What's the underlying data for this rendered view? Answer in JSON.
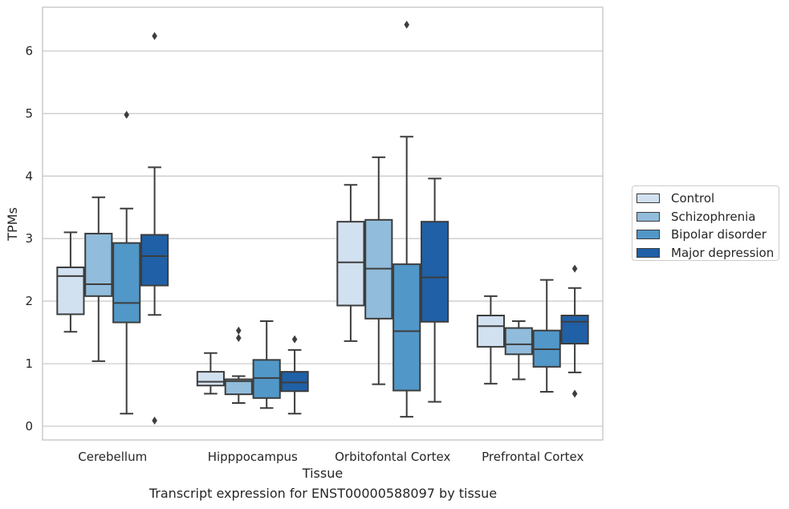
{
  "caption": "Transcript expression for ENST00000588097 by tissue",
  "chart_data": {
    "type": "box",
    "xlabel": "Tissue",
    "ylabel": "TPMs",
    "ylim": [
      -0.22,
      6.7
    ],
    "yticks": [
      0,
      1,
      2,
      3,
      4,
      5,
      6
    ],
    "grid": true,
    "legend_position": "right",
    "categories": [
      "Cerebellum",
      "Hipppocampus",
      "Orbitofontal Cortex",
      "Prefrontal Cortex"
    ],
    "series": [
      {
        "name": "Control",
        "color": "#d1e1f0",
        "boxes": [
          {
            "whislo": 1.51,
            "q1": 1.79,
            "med": 2.4,
            "q3": 2.54,
            "whishi": 3.1,
            "fliers": []
          },
          {
            "whislo": 0.52,
            "q1": 0.65,
            "med": 0.71,
            "q3": 0.87,
            "whishi": 1.17,
            "fliers": []
          },
          {
            "whislo": 1.36,
            "q1": 1.93,
            "med": 2.62,
            "q3": 3.27,
            "whishi": 3.86,
            "fliers": []
          },
          {
            "whislo": 0.68,
            "q1": 1.27,
            "med": 1.6,
            "q3": 1.77,
            "whishi": 2.08,
            "fliers": []
          }
        ]
      },
      {
        "name": "Schizophrenia",
        "color": "#91bcdb",
        "boxes": [
          {
            "whislo": 1.04,
            "q1": 2.08,
            "med": 2.27,
            "q3": 3.08,
            "whishi": 3.66,
            "fliers": []
          },
          {
            "whislo": 0.37,
            "q1": 0.51,
            "med": 0.72,
            "q3": 0.75,
            "whishi": 0.8,
            "fliers": [
              1.41,
              1.53
            ]
          },
          {
            "whislo": 0.67,
            "q1": 1.72,
            "med": 2.52,
            "q3": 3.3,
            "whishi": 4.3,
            "fliers": []
          },
          {
            "whislo": 0.75,
            "q1": 1.15,
            "med": 1.31,
            "q3": 1.57,
            "whishi": 1.68,
            "fliers": []
          }
        ]
      },
      {
        "name": "Bipolar disorder",
        "color": "#5197c8",
        "boxes": [
          {
            "whislo": 0.2,
            "q1": 1.66,
            "med": 1.97,
            "q3": 2.93,
            "whishi": 3.48,
            "fliers": [
              4.98
            ]
          },
          {
            "whislo": 0.29,
            "q1": 0.45,
            "med": 0.77,
            "q3": 1.06,
            "whishi": 1.68,
            "fliers": []
          },
          {
            "whislo": 0.15,
            "q1": 0.57,
            "med": 1.52,
            "q3": 2.59,
            "whishi": 4.63,
            "fliers": [
              6.42
            ]
          },
          {
            "whislo": 0.55,
            "q1": 0.95,
            "med": 1.23,
            "q3": 1.53,
            "whishi": 2.34,
            "fliers": []
          }
        ]
      },
      {
        "name": "Major depression",
        "color": "#2060a7",
        "boxes": [
          {
            "whislo": 1.78,
            "q1": 2.25,
            "med": 2.72,
            "q3": 3.06,
            "whishi": 4.14,
            "fliers": [
              6.24,
              0.09
            ]
          },
          {
            "whislo": 0.2,
            "q1": 0.56,
            "med": 0.7,
            "q3": 0.87,
            "whishi": 1.22,
            "fliers": [
              1.39
            ]
          },
          {
            "whislo": 0.39,
            "q1": 1.67,
            "med": 2.38,
            "q3": 3.27,
            "whishi": 3.96,
            "fliers": []
          },
          {
            "whislo": 0.86,
            "q1": 1.32,
            "med": 1.67,
            "q3": 1.77,
            "whishi": 2.21,
            "fliers": [
              2.52,
              0.52
            ]
          }
        ]
      }
    ]
  }
}
